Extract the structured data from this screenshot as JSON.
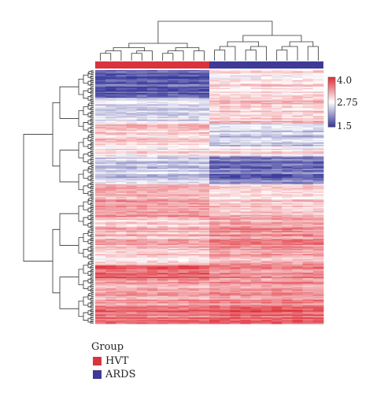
{
  "chart_data": {
    "type": "heatmap",
    "groups": [
      {
        "name": "HVT",
        "color": "#d9343c",
        "samples": 11
      },
      {
        "name": "ARDS",
        "color": "#3e3a96",
        "samples": 11
      }
    ],
    "color_scale": {
      "min": 1.5,
      "mid": 2.75,
      "max": 4.0,
      "min_label": "1.5",
      "mid_label": "2.75",
      "max_label": "4.0",
      "low_color": "#3a3a9c",
      "mid_color": "#ffffff",
      "high_color": "#e0303a"
    },
    "row_dendrogram": true,
    "column_dendrogram": true,
    "row_blocks": [
      {
        "rows": 22,
        "HVT": 1.75,
        "ARDS": 2.95
      },
      {
        "rows": 20,
        "HVT": 2.55,
        "ARDS": 3.1
      },
      {
        "rows": 18,
        "HVT": 3.05,
        "ARDS": 2.45
      },
      {
        "rows": 8,
        "HVT": 2.9,
        "ARDS": 2.9
      },
      {
        "rows": 22,
        "HVT": 2.45,
        "ARDS": 1.9
      },
      {
        "rows": 26,
        "HVT": 3.3,
        "ARDS": 3.05
      },
      {
        "rows": 24,
        "HVT": 3.15,
        "ARDS": 3.4
      },
      {
        "rows": 14,
        "HVT": 3.0,
        "ARDS": 3.25
      },
      {
        "rows": 12,
        "HVT": 3.7,
        "ARDS": 3.45
      },
      {
        "rows": 20,
        "HVT": 3.35,
        "ARDS": 3.45
      },
      {
        "rows": 14,
        "HVT": 3.55,
        "ARDS": 3.65
      }
    ]
  },
  "legend": {
    "title": "Group",
    "items": [
      {
        "label": "HVT",
        "color": "#d9343c"
      },
      {
        "label": "ARDS",
        "color": "#3e3a96"
      }
    ]
  }
}
